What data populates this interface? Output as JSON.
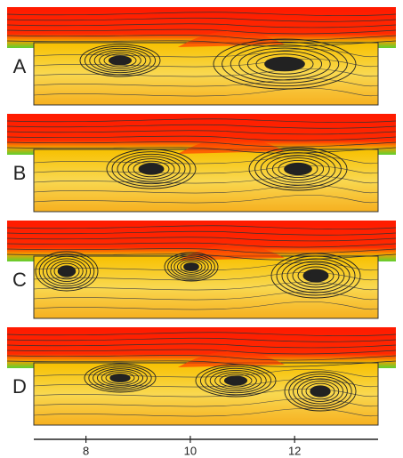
{
  "panels": [
    {
      "label": "A"
    },
    {
      "label": "B"
    },
    {
      "label": "C"
    },
    {
      "label": "D"
    }
  ],
  "axis": {
    "xlim": [
      7,
      13.6
    ],
    "xticks": [
      8,
      10,
      12
    ]
  }
}
